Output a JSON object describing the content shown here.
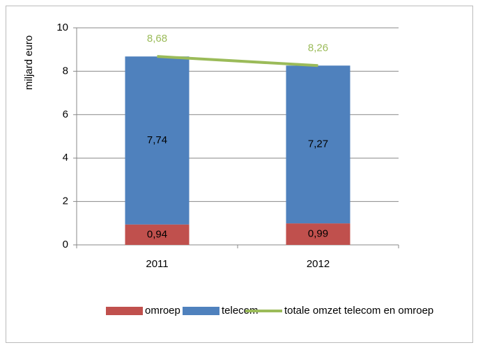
{
  "chart_data": {
    "type": "bar",
    "stacked": true,
    "y_label": "miljard euro",
    "categories": [
      "2011",
      "2012"
    ],
    "ylim": [
      0,
      10
    ],
    "yticks": [
      0,
      2,
      4,
      6,
      8,
      10
    ],
    "grid": true,
    "legend": "bottom",
    "series": [
      {
        "name": "omroep",
        "color": "#c0504d",
        "values": [
          0.94,
          0.99
        ],
        "value_labels": [
          "0,94",
          "0,99"
        ]
      },
      {
        "name": "telecom",
        "color": "#4f81bd",
        "values": [
          7.74,
          7.27
        ],
        "value_labels": [
          "7,74",
          "7,27"
        ]
      },
      {
        "name": "totale omzet telecom en omroep",
        "type": "line",
        "color": "#9bbb59",
        "values": [
          8.68,
          8.26
        ],
        "value_labels": [
          "8,68",
          "8,26"
        ]
      }
    ]
  }
}
